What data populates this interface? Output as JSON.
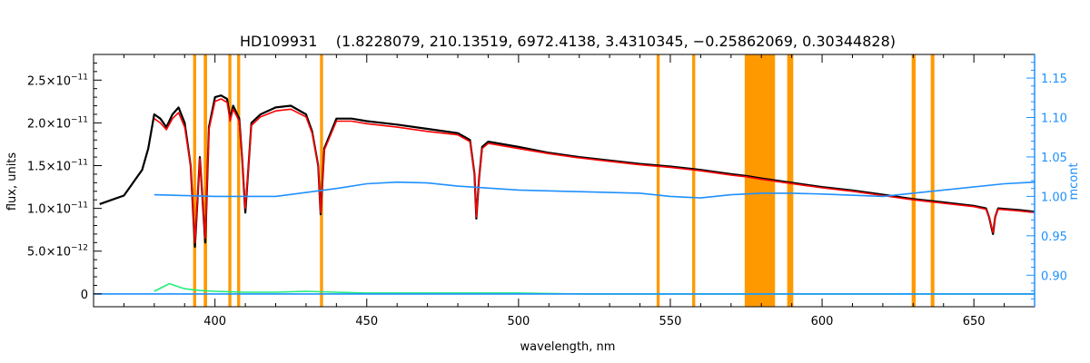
{
  "chart_data": {
    "type": "line",
    "title": "HD109931    (1.8228079, 210.13519, 6972.4138, 3.4310345, −0.25862069, 0.30344828)",
    "xlabel": "wavelength, nm",
    "ylabel": "flux, units",
    "y2label": "mcont",
    "xlim": [
      360,
      670
    ],
    "ylim": [
      -1.5e-12,
      2.8e-11
    ],
    "y2lim": [
      0.86,
      1.18
    ],
    "x_ticks": [
      400,
      450,
      500,
      550,
      600,
      650
    ],
    "x_tick_labels": [
      "400",
      "450",
      "500",
      "550",
      "600",
      "650"
    ],
    "y_ticks": [
      0,
      5e-12,
      1e-11,
      1.5e-11,
      2e-11,
      2.5e-11
    ],
    "y_tick_labels": [
      {
        "man": "0",
        "exp": ""
      },
      {
        "man": "5.0×10",
        "exp": "−12"
      },
      {
        "man": "1.0×10",
        "exp": "−11"
      },
      {
        "man": "1.5×10",
        "exp": "−11"
      },
      {
        "man": "2.0×10",
        "exp": "−11"
      },
      {
        "man": "2.5×10",
        "exp": "−11"
      }
    ],
    "y2_ticks": [
      0.9,
      0.95,
      1.0,
      1.05,
      1.1,
      1.15
    ],
    "y2_tick_labels": [
      "0.90",
      "0.95",
      "1.00",
      "1.05",
      "1.10",
      "1.15"
    ],
    "grid": false,
    "legend": "none",
    "masked_regions": [
      [
        392.8,
        393.8
      ],
      [
        396.3,
        397.4
      ],
      [
        404.4,
        405.4
      ],
      [
        407.3,
        408.3
      ],
      [
        434.6,
        435.6
      ],
      [
        545.5,
        546.5
      ],
      [
        557.2,
        558.2
      ],
      [
        574.5,
        584.5
      ],
      [
        588.5,
        590.5
      ],
      [
        629.5,
        630.8
      ],
      [
        635.8,
        637.0
      ]
    ],
    "series": [
      {
        "key": "observed",
        "color": "#000000",
        "x": [
          362,
          366,
          370,
          372,
          374,
          376,
          378,
          380,
          382,
          384,
          386,
          388,
          390,
          392,
          393.4,
          395,
          396.8,
          398,
          400,
          402,
          404,
          405,
          406,
          408,
          409,
          410,
          412,
          415,
          420,
          425,
          430,
          432,
          434,
          434.8,
          436,
          440,
          445,
          450,
          460,
          470,
          480,
          484,
          485.5,
          486.1,
          487,
          488,
          490,
          500,
          510,
          520,
          530,
          540,
          550,
          560,
          570,
          575,
          580,
          590,
          600,
          610,
          620,
          630,
          640,
          650,
          654,
          655,
          656.3,
          657,
          658,
          665,
          670
        ],
        "y": [
          1.05e-11,
          1.1e-11,
          1.15e-11,
          1.25e-11,
          1.35e-11,
          1.45e-11,
          1.7e-11,
          2.1e-11,
          2.05e-11,
          1.95e-11,
          2.1e-11,
          2.18e-11,
          2e-11,
          1.5e-11,
          5.5e-12,
          1.6e-11,
          6e-12,
          1.95e-11,
          2.3e-11,
          2.32e-11,
          2.28e-11,
          2.05e-11,
          2.2e-11,
          2.05e-11,
          1.55e-11,
          9.5e-12,
          2e-11,
          2.1e-11,
          2.18e-11,
          2.2e-11,
          2.1e-11,
          1.9e-11,
          1.5e-11,
          9.3e-12,
          1.7e-11,
          2.05e-11,
          2.05e-11,
          2.02e-11,
          1.98e-11,
          1.93e-11,
          1.88e-11,
          1.8e-11,
          1.4e-11,
          8.8e-12,
          1.35e-11,
          1.72e-11,
          1.78e-11,
          1.72e-11,
          1.65e-11,
          1.6e-11,
          1.56e-11,
          1.52e-11,
          1.49e-11,
          1.45e-11,
          1.4e-11,
          1.38e-11,
          1.35e-11,
          1.3e-11,
          1.25e-11,
          1.21e-11,
          1.16e-11,
          1.11e-11,
          1.07e-11,
          1.03e-11,
          1e-11,
          9e-12,
          7e-12,
          9e-12,
          1e-11,
          9.8e-12,
          9.6e-12
        ]
      },
      {
        "key": "model",
        "color": "#ff0000",
        "x": [
          380,
          382,
          384,
          386,
          388,
          390,
          392,
          393.4,
          395,
          396.8,
          398,
          400,
          402,
          404,
          405,
          406,
          408,
          409,
          410,
          412,
          415,
          420,
          425,
          430,
          432,
          434,
          434.8,
          436,
          440,
          445,
          450,
          460,
          470,
          480,
          484,
          485.5,
          486.1,
          487,
          488,
          490,
          500,
          510,
          520,
          530,
          540,
          550,
          560,
          570,
          575,
          580,
          590,
          600,
          610,
          620,
          630,
          640,
          650,
          654,
          655,
          656.3,
          657,
          658,
          665,
          670
        ],
        "y": [
          2.05e-11,
          2e-11,
          1.92e-11,
          2.05e-11,
          2.12e-11,
          1.95e-11,
          1.5e-11,
          6e-12,
          1.58e-11,
          6.5e-12,
          1.92e-11,
          2.25e-11,
          2.28e-11,
          2.24e-11,
          2.02e-11,
          2.16e-11,
          2.02e-11,
          1.55e-11,
          1e-11,
          1.97e-11,
          2.07e-11,
          2.14e-11,
          2.16e-11,
          2.07e-11,
          1.88e-11,
          1.5e-11,
          9.5e-12,
          1.68e-11,
          2.02e-11,
          2.02e-11,
          1.99e-11,
          1.95e-11,
          1.9e-11,
          1.86e-11,
          1.78e-11,
          1.4e-11,
          9e-12,
          1.35e-11,
          1.7e-11,
          1.76e-11,
          1.7e-11,
          1.64e-11,
          1.59e-11,
          1.55e-11,
          1.51e-11,
          1.48e-11,
          1.44e-11,
          1.39e-11,
          1.37e-11,
          1.34e-11,
          1.29e-11,
          1.24e-11,
          1.2e-11,
          1.15e-11,
          1.1e-11,
          1.06e-11,
          1.02e-11,
          9.9e-12,
          9e-12,
          7.2e-12,
          9e-12,
          9.9e-12,
          9.7e-12,
          9.5e-12
        ]
      },
      {
        "key": "residual",
        "color": "#22ee77",
        "x": [
          380,
          385,
          390,
          395,
          400,
          410,
          420,
          430,
          440,
          450,
          460,
          480,
          500,
          520,
          540,
          560,
          580,
          600,
          620,
          640,
          660,
          670
        ],
        "y": [
          3e-13,
          1.2e-12,
          6e-13,
          4e-13,
          3e-13,
          2e-13,
          2e-13,
          3e-13,
          2e-13,
          1e-13,
          1e-13,
          1e-13,
          1e-13,
          0,
          0,
          0,
          0,
          0,
          0,
          0,
          0,
          0
        ]
      },
      {
        "key": "continuum",
        "axis": "y2",
        "color": "#1e90ff",
        "x": [
          380,
          400,
          420,
          440,
          450,
          460,
          470,
          480,
          500,
          520,
          540,
          550,
          560,
          570,
          580,
          590,
          600,
          620,
          640,
          660,
          670
        ],
        "y": [
          1.002,
          1.0,
          1.0,
          1.01,
          1.016,
          1.018,
          1.017,
          1.013,
          1.008,
          1.006,
          1.004,
          1.0,
          0.998,
          1.002,
          1.004,
          1.004,
          1.003,
          1.0,
          1.008,
          1.016,
          1.018
        ]
      },
      {
        "key": "baseline",
        "color": "#1e90ff",
        "x": [
          360,
          670
        ],
        "y": [
          0,
          0
        ]
      }
    ],
    "colors": {
      "mask": "#ff9900",
      "right_axis": "#1e90ff",
      "axis": "#000000"
    }
  }
}
